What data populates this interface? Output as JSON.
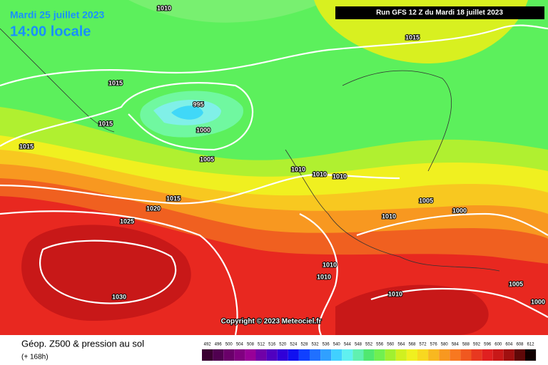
{
  "header": {
    "date": "Mardi 25 juillet 2023",
    "time": "14:00 locale",
    "run": "Run GFS 12 Z du Mardi 18 juillet 2023"
  },
  "isobars": [
    1010,
    1015,
    1015,
    995,
    1015,
    1000,
    1015,
    1005,
    1010,
    1010,
    1010,
    1015,
    1005,
    1020,
    1000,
    1010,
    1025,
    1010,
    1010,
    1010,
    1030,
    1005,
    1000
  ],
  "copyright": "Copyright © 2023 Meteociel.fr",
  "footer": {
    "title": "Géop. Z500 & pression au sol",
    "subtitle": "(+ 168h)"
  },
  "scale": [
    492,
    496,
    500,
    504,
    508,
    512,
    516,
    520,
    524,
    528,
    532,
    536,
    540,
    544,
    548,
    552,
    556,
    560,
    564,
    568,
    572,
    576,
    580,
    584,
    588,
    592,
    596,
    600,
    604,
    608,
    612
  ]
}
